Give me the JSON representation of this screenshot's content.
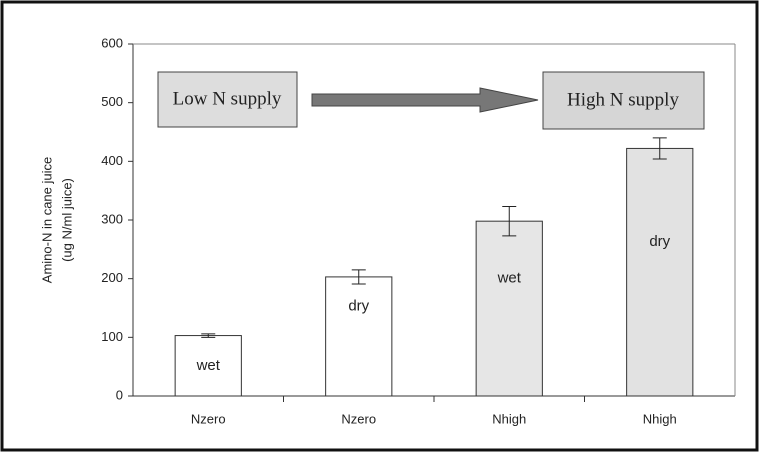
{
  "chart_data": {
    "type": "bar",
    "ylabel": [
      "Amino-N in cane juice",
      "(ug N/ml juice)"
    ],
    "categories": [
      "Nzero",
      "Nzero",
      "Nhigh",
      "Nhigh"
    ],
    "bar_labels": [
      "wet",
      "dry",
      "wet",
      "dry"
    ],
    "values": [
      103,
      203,
      298,
      422
    ],
    "errors": [
      3,
      12,
      25,
      18
    ],
    "colors": [
      "#ffffff",
      "#ffffff",
      "#e6e6e6",
      "#e2e2e2"
    ],
    "ylim": [
      0,
      600
    ],
    "yticks": [
      0,
      100,
      200,
      300,
      400,
      500,
      600
    ],
    "annotations": [
      "Low N supply",
      "High N supply"
    ]
  }
}
